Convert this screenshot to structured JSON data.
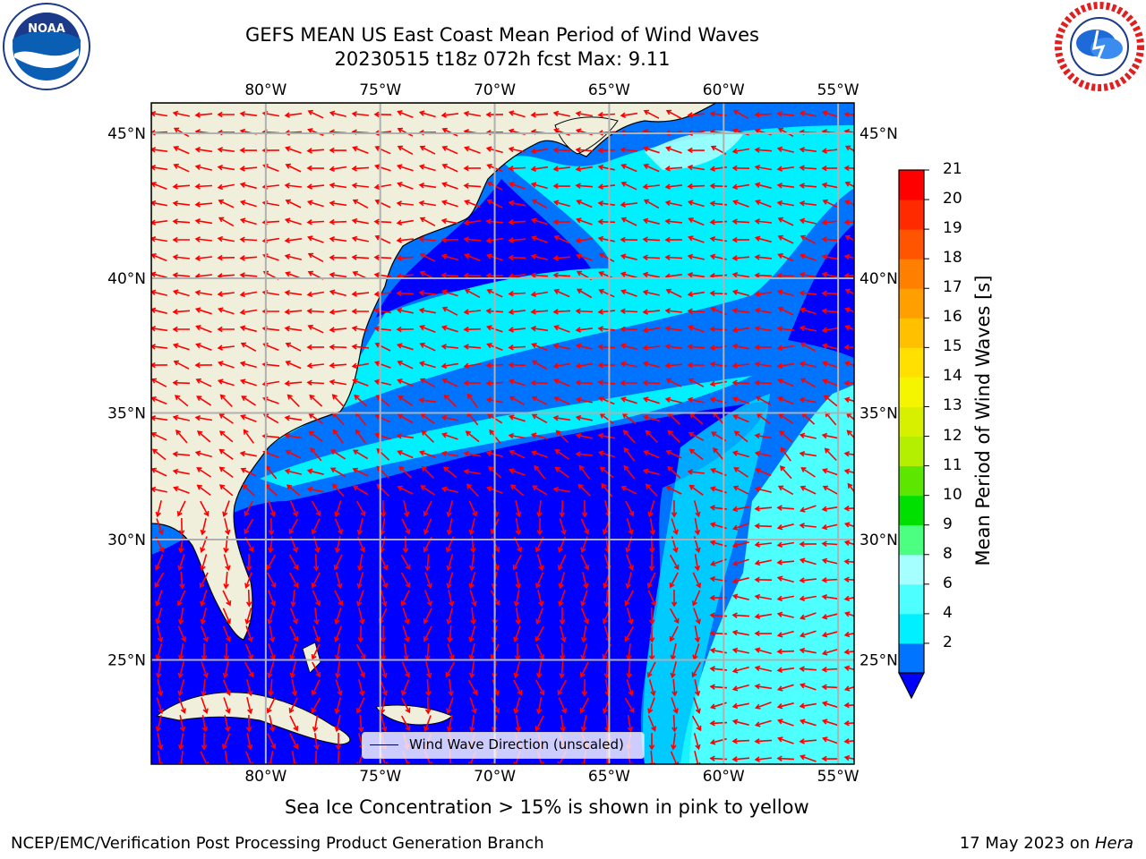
{
  "title": {
    "line1": "GEFS MEAN US East Coast Mean Period of Wind Waves",
    "line2": "20230515 t18z 072h fcst   Max: 9.11"
  },
  "map": {
    "lon_labels": [
      "80°W",
      "75°W",
      "70°W",
      "65°W",
      "60°W",
      "55°W"
    ],
    "lat_labels": [
      "45°N",
      "40°N",
      "35°N",
      "30°N",
      "25°N"
    ],
    "lon_range": [
      -85,
      -54.3
    ],
    "lat_range": [
      20.5,
      46
    ],
    "land_color": "#efefdc",
    "arrow_color": "#ff0000",
    "grid_color": "#b0b0b0"
  },
  "legend": {
    "label": "Wind Wave Direction (unscaled)"
  },
  "colorbar": {
    "label": "Mean Period of Wind Waves [s]",
    "ticks": [
      "21",
      "20",
      "19",
      "18",
      "17",
      "16",
      "15",
      "14",
      "13",
      "12",
      "11",
      "10",
      "9",
      "8",
      "6",
      "4",
      "2"
    ],
    "colors": [
      "#0000ff",
      "#0074ff",
      "#00f0ff",
      "#4dffff",
      "#a6ffff",
      "#4dff80",
      "#00e000",
      "#5ce600",
      "#b4ee00",
      "#d6f000",
      "#f5f500",
      "#ffe000",
      "#ffc000",
      "#ffa000",
      "#ff8000",
      "#ff5500",
      "#ff2a00",
      "#ff0000"
    ]
  },
  "captions": {
    "ice": "Sea Ice Concentration > 15% is shown in pink to yellow",
    "footer_left": "NCEP/EMC/Verification Post Processing Product Generation Branch",
    "footer_date": "17 May 2023 on ",
    "footer_machine": "Hera"
  },
  "logos": {
    "left": "noaa-logo",
    "right": "nws-logo",
    "left_text": "NOAA"
  }
}
